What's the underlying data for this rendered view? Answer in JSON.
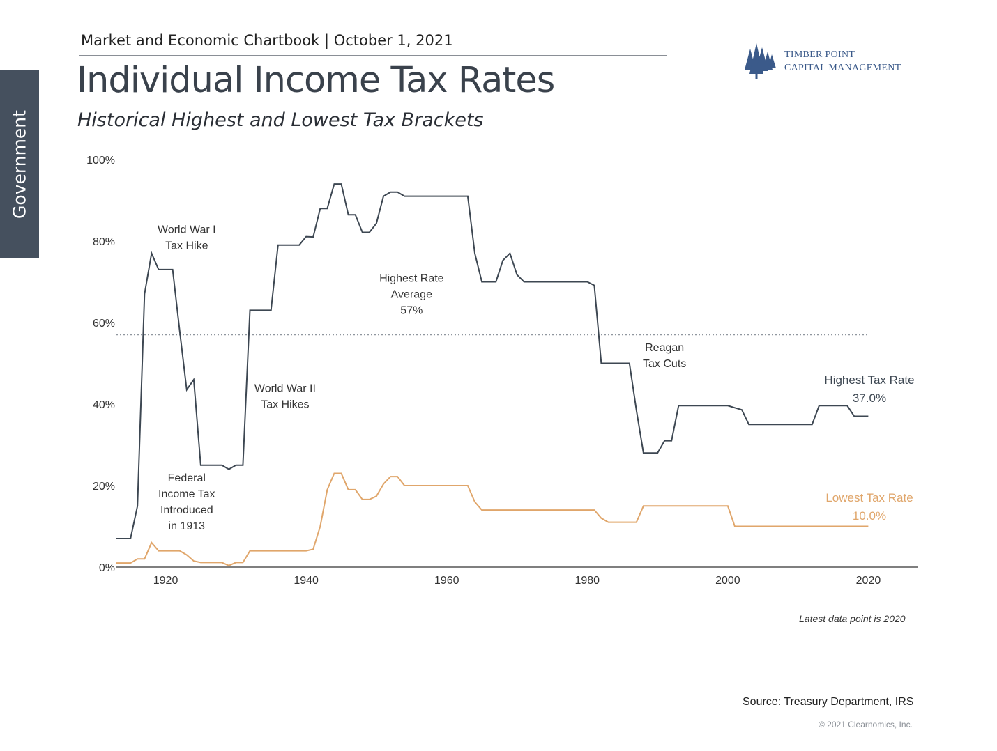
{
  "side_tab": {
    "label": "Government"
  },
  "header": {
    "line": "Market and Economic Chartbook | October 1, 2021",
    "title": "Individual Income Tax Rates",
    "subtitle": "Historical Highest and Lowest Tax Brackets"
  },
  "logo": {
    "line1": "TIMBER POINT",
    "line2": "CAPITAL MANAGEMENT",
    "icon": "pine-trees-icon",
    "color": "#3b5a8a"
  },
  "footer": {
    "note": "Latest data point is 2020",
    "source": "Source: Treasury Department, IRS",
    "copyright": "© 2021 Clearnomics, Inc."
  },
  "chart_data": {
    "type": "line",
    "title": "Individual Income Tax Rates",
    "subtitle": "Historical Highest and Lowest Tax Brackets",
    "xlabel": "",
    "ylabel": "",
    "xlim": [
      1913,
      2027
    ],
    "ylim": [
      0,
      100
    ],
    "x_ticks": [
      1920,
      1940,
      1960,
      1980,
      2000,
      2020
    ],
    "x_tick_labels": [
      "1920",
      "1940",
      "1960",
      "1980",
      "2000",
      "2020"
    ],
    "y_ticks": [
      0,
      20,
      40,
      60,
      80,
      100
    ],
    "y_tick_labels": [
      "0%",
      "20%",
      "40%",
      "60%",
      "80%",
      "100%"
    ],
    "grid": false,
    "reference_line": {
      "value": 57,
      "style": "dotted"
    },
    "series": [
      {
        "name": "Highest Tax Rate",
        "color": "#3d4752",
        "label": "Highest Tax Rate",
        "value_label": "37.0%",
        "points": [
          [
            1913,
            7
          ],
          [
            1915,
            7
          ],
          [
            1916,
            15
          ],
          [
            1917,
            67
          ],
          [
            1918,
            77
          ],
          [
            1919,
            73
          ],
          [
            1921,
            73
          ],
          [
            1922,
            58
          ],
          [
            1923,
            43.5
          ],
          [
            1924,
            46
          ],
          [
            1925,
            25
          ],
          [
            1928,
            25
          ],
          [
            1929,
            24
          ],
          [
            1930,
            25
          ],
          [
            1931,
            25
          ],
          [
            1932,
            63
          ],
          [
            1935,
            63
          ],
          [
            1936,
            79
          ],
          [
            1939,
            79
          ],
          [
            1940,
            81.1
          ],
          [
            1941,
            81
          ],
          [
            1942,
            88
          ],
          [
            1943,
            88
          ],
          [
            1944,
            94
          ],
          [
            1945,
            94
          ],
          [
            1946,
            86.45
          ],
          [
            1947,
            86.45
          ],
          [
            1948,
            82.13
          ],
          [
            1949,
            82.13
          ],
          [
            1950,
            84.36
          ],
          [
            1951,
            91
          ],
          [
            1952,
            92
          ],
          [
            1953,
            92
          ],
          [
            1954,
            91
          ],
          [
            1963,
            91
          ],
          [
            1964,
            77
          ],
          [
            1965,
            70
          ],
          [
            1967,
            70
          ],
          [
            1968,
            75.25
          ],
          [
            1969,
            77
          ],
          [
            1970,
            71.75
          ],
          [
            1971,
            70
          ],
          [
            1980,
            70
          ],
          [
            1981,
            69.13
          ],
          [
            1982,
            50
          ],
          [
            1986,
            50
          ],
          [
            1987,
            38.5
          ],
          [
            1988,
            28
          ],
          [
            1990,
            28
          ],
          [
            1991,
            31
          ],
          [
            1992,
            31
          ],
          [
            1993,
            39.6
          ],
          [
            2000,
            39.6
          ],
          [
            2001,
            39.1
          ],
          [
            2002,
            38.6
          ],
          [
            2003,
            35
          ],
          [
            2012,
            35
          ],
          [
            2013,
            39.6
          ],
          [
            2017,
            39.6
          ],
          [
            2018,
            37
          ],
          [
            2020,
            37
          ]
        ]
      },
      {
        "name": "Lowest Tax Rate",
        "color": "#e0a66b",
        "label": "Lowest Tax Rate",
        "value_label": "10.0%",
        "points": [
          [
            1913,
            1
          ],
          [
            1915,
            1
          ],
          [
            1916,
            2
          ],
          [
            1917,
            2
          ],
          [
            1918,
            6
          ],
          [
            1919,
            4
          ],
          [
            1921,
            4
          ],
          [
            1922,
            4
          ],
          [
            1923,
            3
          ],
          [
            1924,
            1.5
          ],
          [
            1925,
            1.125
          ],
          [
            1928,
            1.125
          ],
          [
            1929,
            0.375
          ],
          [
            1930,
            1.125
          ],
          [
            1931,
            1.125
          ],
          [
            1932,
            4
          ],
          [
            1940,
            4
          ],
          [
            1941,
            4.4
          ],
          [
            1942,
            10
          ],
          [
            1943,
            19
          ],
          [
            1944,
            23
          ],
          [
            1945,
            23
          ],
          [
            1946,
            19
          ],
          [
            1947,
            19
          ],
          [
            1948,
            16.6
          ],
          [
            1949,
            16.6
          ],
          [
            1950,
            17.4
          ],
          [
            1951,
            20.4
          ],
          [
            1952,
            22.2
          ],
          [
            1953,
            22.2
          ],
          [
            1954,
            20
          ],
          [
            1963,
            20
          ],
          [
            1964,
            16
          ],
          [
            1965,
            14
          ],
          [
            1981,
            14
          ],
          [
            1982,
            12
          ],
          [
            1983,
            11
          ],
          [
            1987,
            11
          ],
          [
            1988,
            15
          ],
          [
            2000,
            15
          ],
          [
            2001,
            10
          ],
          [
            2020,
            10
          ]
        ]
      }
    ],
    "annotations": [
      {
        "id": "ww1",
        "lines": [
          "World War I",
          "Tax Hike"
        ],
        "x": 1923,
        "y_top": 82
      },
      {
        "id": "fed",
        "lines": [
          "Federal",
          "Income Tax",
          "Introduced",
          "in 1913"
        ],
        "x": 1923,
        "y_top": 21
      },
      {
        "id": "ww2",
        "lines": [
          "World War II",
          "Tax Hikes"
        ],
        "x": 1937,
        "y_top": 43
      },
      {
        "id": "avg",
        "lines": [
          "Highest Rate",
          "Average",
          "57%"
        ],
        "x": 1955,
        "y_top": 70
      },
      {
        "id": "reagan",
        "lines": [
          "Reagan",
          "Tax Cuts"
        ],
        "x": 1991,
        "y_top": 53
      }
    ]
  }
}
